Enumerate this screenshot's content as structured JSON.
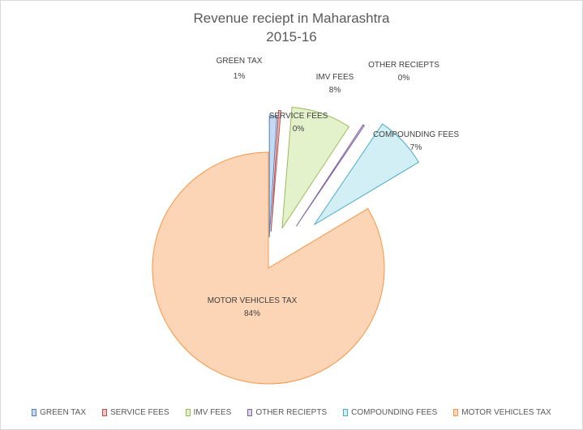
{
  "chart_data": {
    "type": "pie",
    "title": "Revenue reciept in Maharashtra",
    "subtitle": "2015-16",
    "exploded": true,
    "legend_position": "bottom",
    "slices": [
      {
        "label": "GREEN TAX",
        "value": 1,
        "value_label": "1%",
        "fill": "#c6d9f1",
        "stroke": "#4f81bd"
      },
      {
        "label": "SERVICE FEES",
        "value": 0.3,
        "value_label": "0%",
        "fill": "#f2c4c4",
        "stroke": "#c0504d"
      },
      {
        "label": "IMV FEES",
        "value": 8,
        "value_label": "8%",
        "fill": "#e4f2cc",
        "stroke": "#9bbb59"
      },
      {
        "label": "OTHER RECIEPTS",
        "value": 0.2,
        "value_label": "0%",
        "fill": "#ddd5ea",
        "stroke": "#8064a2"
      },
      {
        "label": "COMPOUNDING FEES",
        "value": 7,
        "value_label": "7%",
        "fill": "#d2eff6",
        "stroke": "#4bacc6"
      },
      {
        "label": "MOTOR VEHICLES TAX",
        "value": 84,
        "value_label": "84%",
        "fill": "#fbd5b5",
        "stroke": "#f79646"
      }
    ]
  }
}
